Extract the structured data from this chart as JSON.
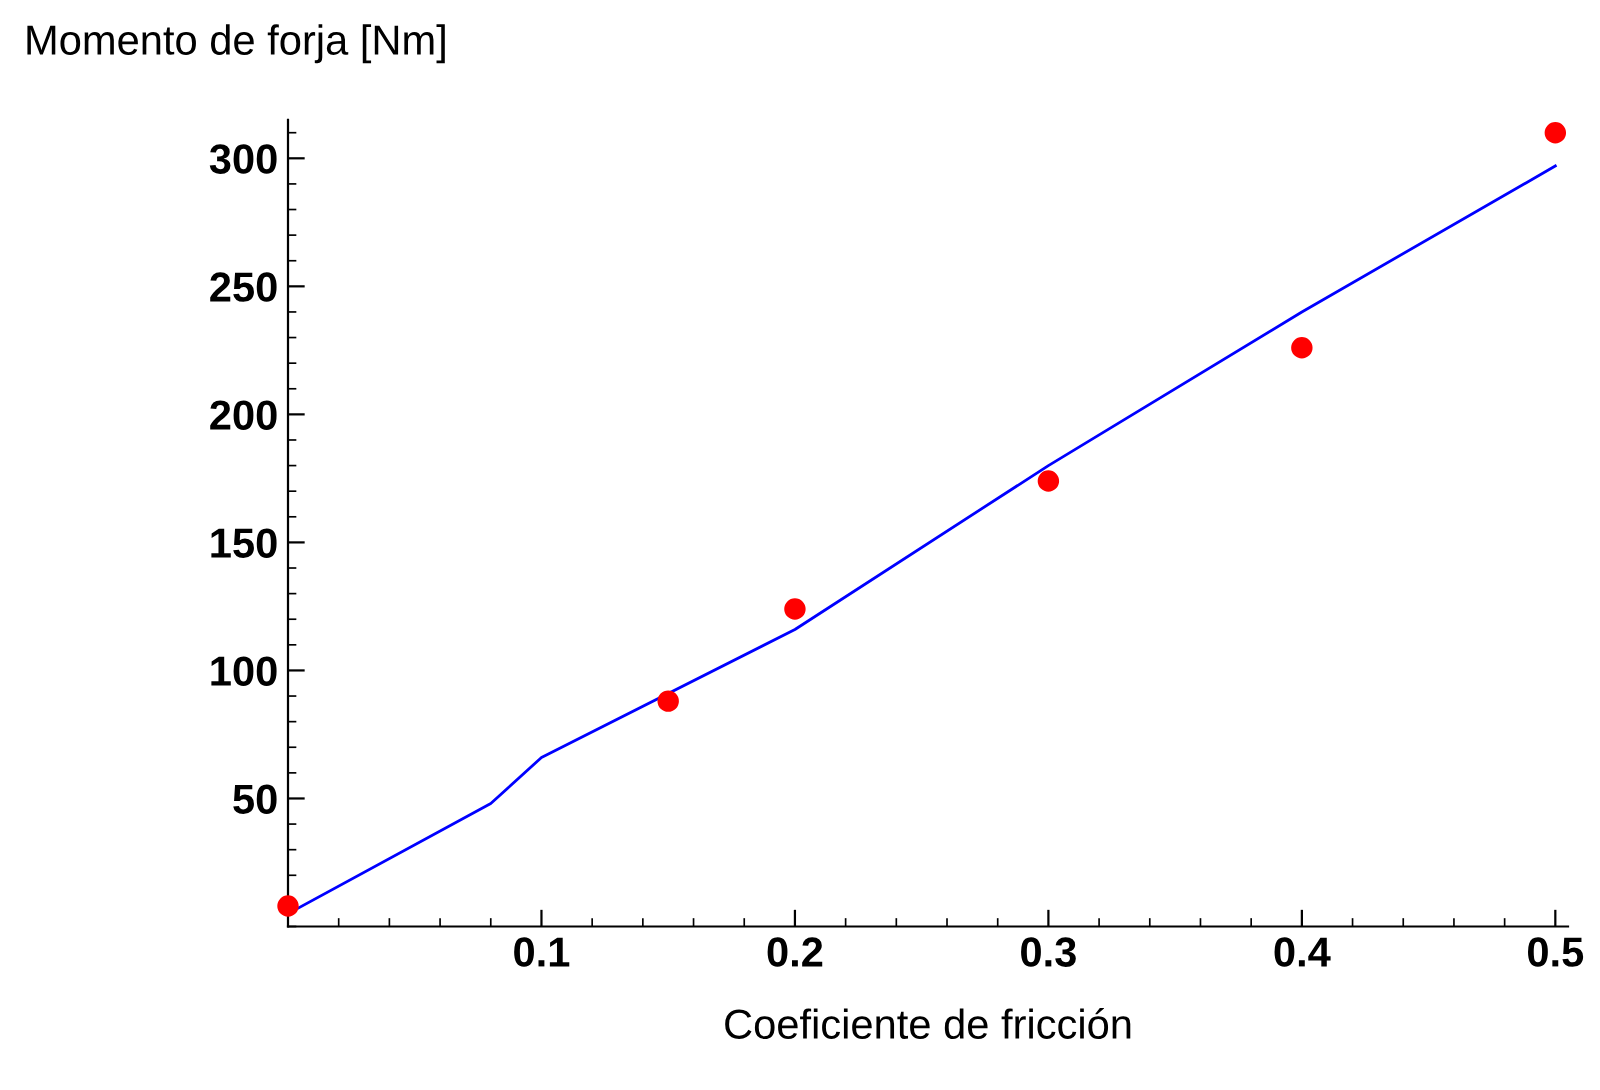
{
  "chart_data": {
    "type": "scatter",
    "xlabel": "Coeficiente de fricción",
    "ylabel": "Momento de forja [Nm]",
    "xlim": [
      0,
      0.505
    ],
    "ylim": [
      0,
      315
    ],
    "xticks": [
      0.1,
      0.2,
      0.3,
      0.4,
      0.5
    ],
    "yticks": [
      50,
      100,
      150,
      200,
      250,
      300
    ],
    "marker": "circle",
    "grid": false,
    "legend": false,
    "series": [
      {
        "color": "#ff0000",
        "x": [
          0,
          0.15,
          0.2,
          0.3,
          0.4,
          0.5
        ],
        "values": [
          8,
          88,
          124,
          174,
          226,
          310
        ]
      },
      {
        "type": "line",
        "marker": "none",
        "color": "#0000ff",
        "x": [
          0,
          0.08,
          0.1,
          0.2,
          0.3,
          0.4,
          0.5
        ],
        "values": [
          5,
          48,
          66,
          116,
          180,
          240,
          297
        ]
      }
    ]
  }
}
